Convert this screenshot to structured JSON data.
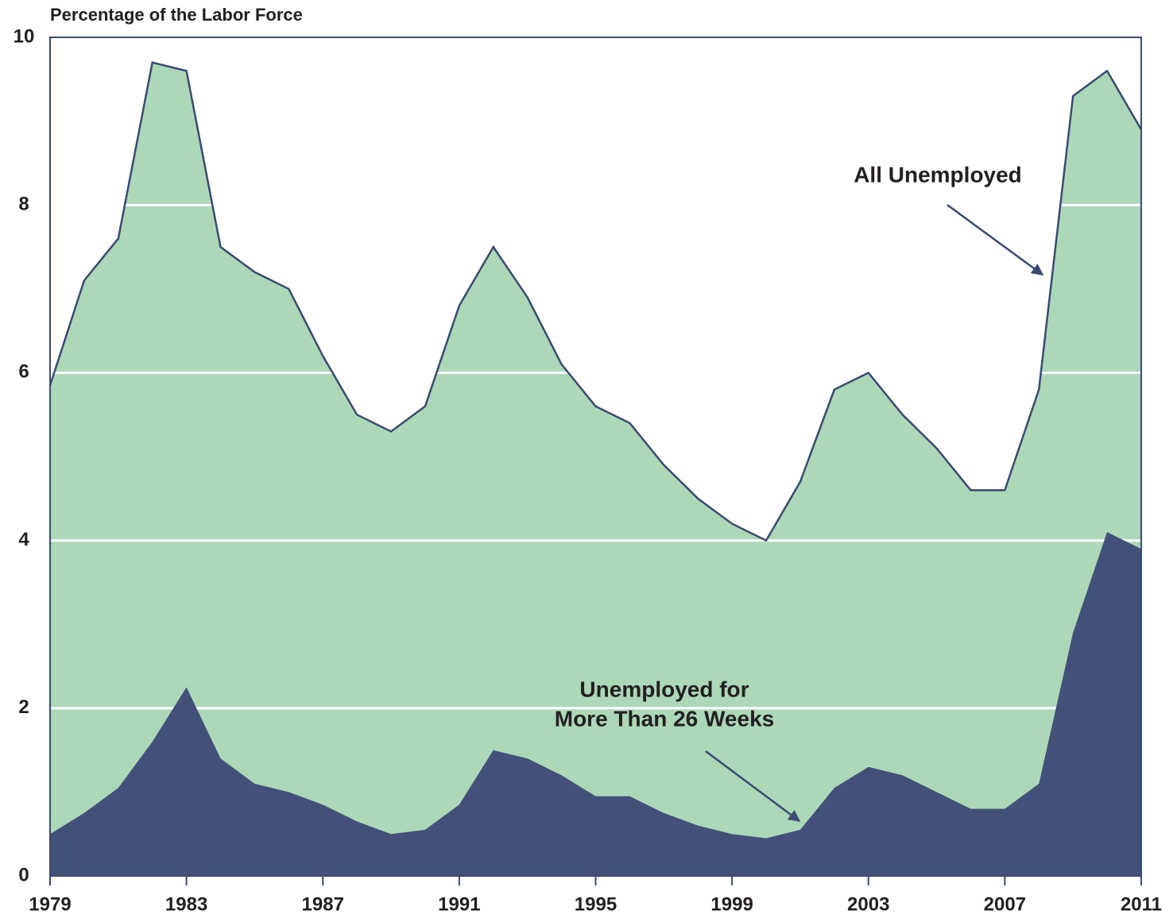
{
  "chart_data": {
    "type": "area",
    "y_label": "Percentage of the Labor Force",
    "x": [
      1979,
      1980,
      1981,
      1982,
      1983,
      1984,
      1985,
      1986,
      1987,
      1988,
      1989,
      1990,
      1991,
      1992,
      1993,
      1994,
      1995,
      1996,
      1997,
      1998,
      1999,
      2000,
      2001,
      2002,
      2003,
      2004,
      2005,
      2006,
      2007,
      2008,
      2009,
      2010,
      2011
    ],
    "series": [
      {
        "name": "All Unemployed",
        "color": "#acd8b8",
        "line_color": "#3b4a72",
        "values": [
          5.85,
          7.1,
          7.6,
          9.7,
          9.6,
          7.5,
          7.2,
          7.0,
          6.2,
          5.5,
          5.3,
          5.6,
          6.8,
          7.5,
          6.9,
          6.1,
          5.6,
          5.4,
          4.9,
          4.5,
          4.2,
          4.0,
          4.7,
          5.8,
          6.0,
          5.5,
          5.1,
          4.6,
          4.6,
          5.8,
          9.3,
          9.6,
          8.9
        ]
      },
      {
        "name": "Unemployed for More Than 26 Weeks",
        "color": "#43507a",
        "values": [
          0.5,
          0.75,
          1.05,
          1.6,
          2.25,
          1.4,
          1.1,
          1.0,
          0.85,
          0.65,
          0.5,
          0.55,
          0.85,
          1.5,
          1.4,
          1.2,
          0.95,
          0.95,
          0.75,
          0.6,
          0.5,
          0.45,
          0.55,
          1.05,
          1.3,
          1.2,
          1.0,
          0.8,
          0.8,
          1.1,
          2.9,
          4.1,
          3.9
        ]
      }
    ],
    "annotations": [
      [
        "All Unemployed"
      ],
      [
        "Unemployed for",
        "More Than 26 Weeks"
      ]
    ],
    "xlim": [
      1979,
      2011
    ],
    "xticks": [
      1979,
      1983,
      1987,
      1991,
      1995,
      1999,
      2003,
      2007,
      2011
    ],
    "ylim": [
      0,
      10
    ],
    "yticks": [
      0,
      2,
      4,
      6,
      8,
      10
    ],
    "grid": true
  }
}
